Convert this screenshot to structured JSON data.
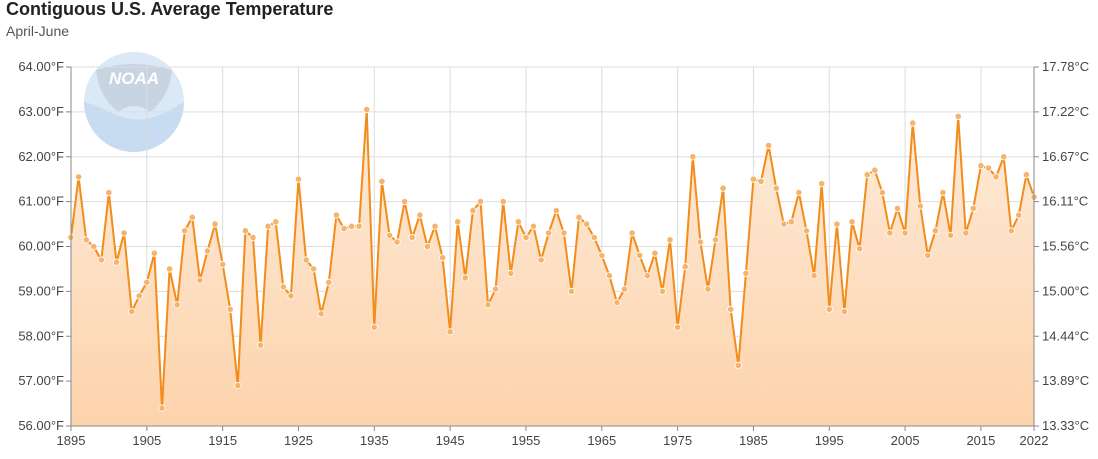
{
  "chart_data": {
    "type": "line",
    "title": "Contiguous U.S. Average Temperature",
    "subtitle": "April-June",
    "colors": {
      "line": "#f28c1a",
      "area_top": "#fdebd9",
      "area_bottom": "#fdd3ac",
      "grid": "#dddddd",
      "marker": "#f6b36b"
    },
    "logo": "NOAA",
    "x": [
      1895,
      1896,
      1897,
      1898,
      1899,
      1900,
      1901,
      1902,
      1903,
      1904,
      1905,
      1906,
      1907,
      1908,
      1909,
      1910,
      1911,
      1912,
      1913,
      1914,
      1915,
      1916,
      1917,
      1918,
      1919,
      1920,
      1921,
      1922,
      1923,
      1924,
      1925,
      1926,
      1927,
      1928,
      1929,
      1930,
      1931,
      1932,
      1933,
      1934,
      1935,
      1936,
      1937,
      1938,
      1939,
      1940,
      1941,
      1942,
      1943,
      1944,
      1945,
      1946,
      1947,
      1948,
      1949,
      1950,
      1951,
      1952,
      1953,
      1954,
      1955,
      1956,
      1957,
      1958,
      1959,
      1960,
      1961,
      1962,
      1963,
      1964,
      1965,
      1966,
      1967,
      1968,
      1969,
      1970,
      1971,
      1972,
      1973,
      1974,
      1975,
      1976,
      1977,
      1978,
      1979,
      1980,
      1981,
      1982,
      1983,
      1984,
      1985,
      1986,
      1987,
      1988,
      1989,
      1990,
      1991,
      1992,
      1993,
      1994,
      1995,
      1996,
      1997,
      1998,
      1999,
      2000,
      2001,
      2002,
      2003,
      2004,
      2005,
      2006,
      2007,
      2008,
      2009,
      2010,
      2011,
      2012,
      2013,
      2014,
      2015,
      2016,
      2017,
      2018,
      2019,
      2020,
      2021,
      2022
    ],
    "series": [
      {
        "values": [
          60.2,
          61.55,
          60.15,
          60.0,
          59.7,
          61.2,
          59.65,
          60.3,
          58.55,
          58.9,
          59.2,
          59.85,
          56.4,
          59.5,
          58.7,
          60.35,
          60.65,
          59.25,
          59.9,
          60.5,
          59.6,
          58.6,
          56.9,
          60.35,
          60.2,
          57.8,
          60.45,
          60.55,
          59.1,
          58.9,
          61.5,
          59.7,
          59.5,
          58.5,
          59.2,
          60.7,
          60.4,
          60.45,
          60.45,
          63.05,
          58.2,
          61.45,
          60.25,
          60.1,
          61.0,
          60.2,
          60.7,
          60.0,
          60.45,
          59.75,
          58.1,
          60.55,
          59.3,
          60.8,
          61.0,
          58.7,
          59.05,
          61.0,
          59.4,
          60.55,
          60.2,
          60.45,
          59.7,
          60.3,
          60.8,
          60.3,
          59.0,
          60.65,
          60.5,
          60.2,
          59.8,
          59.35,
          58.75,
          59.05,
          60.3,
          59.8,
          59.35,
          59.85,
          59.0,
          60.15,
          58.2,
          59.55,
          62.0,
          60.1,
          59.05,
          60.15,
          61.3,
          58.6,
          57.35,
          59.4,
          61.5,
          61.45,
          62.25,
          61.3,
          60.5,
          60.55,
          61.2,
          60.35,
          59.35,
          61.4,
          58.6,
          60.5,
          58.55,
          60.55,
          59.95,
          61.6,
          61.7,
          61.2,
          60.3,
          60.85,
          60.3,
          62.75,
          60.9,
          59.8,
          60.35,
          61.2,
          60.25,
          62.9,
          60.3,
          60.85,
          61.8,
          61.75,
          61.55,
          62.0,
          60.35,
          60.7,
          61.6,
          61.1
        ]
      }
    ],
    "ylim": [
      56,
      64
    ],
    "xlim": [
      1895,
      2022
    ],
    "y_ticks": [
      "64.00°F",
      "63.00°F",
      "62.00°F",
      "61.00°F",
      "60.00°F",
      "59.00°F",
      "58.00°F",
      "57.00°F",
      "56.00°F"
    ],
    "y2_ticks": [
      "17.78°C",
      "17.22°C",
      "16.67°C",
      "16.11°C",
      "15.56°C",
      "15.00°C",
      "14.44°C",
      "13.89°C",
      "13.33°C"
    ],
    "x_ticks": [
      "1895",
      "1905",
      "1915",
      "1925",
      "1935",
      "1945",
      "1955",
      "1965",
      "1975",
      "1985",
      "1995",
      "2005",
      "2015",
      "2022"
    ],
    "x_tick_values": [
      1895,
      1905,
      1915,
      1925,
      1935,
      1945,
      1955,
      1965,
      1975,
      1985,
      1995,
      2005,
      2015,
      2022
    ],
    "grid": true,
    "legend": "none"
  }
}
